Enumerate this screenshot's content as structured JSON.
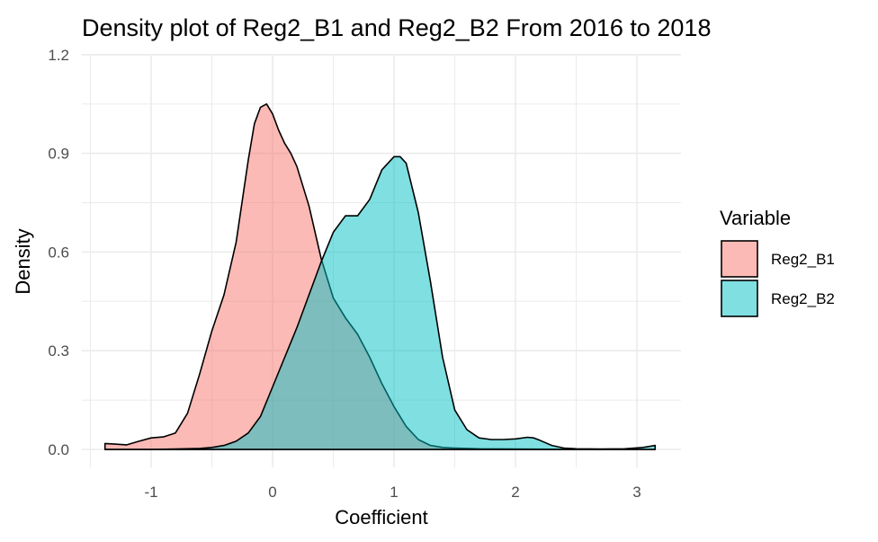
{
  "chart_data": {
    "type": "area",
    "title": "Density plot of Reg2_B1 and Reg2_B2 From 2016 to 2018",
    "xlabel": "Coefficient",
    "ylabel": "Density",
    "xlim": [
      -1.5,
      3.25
    ],
    "ylim": [
      -0.05,
      1.2
    ],
    "x_ticks": [
      -1,
      0,
      1,
      2,
      3
    ],
    "y_ticks": [
      0.0,
      0.3,
      0.6,
      0.9,
      1.2
    ],
    "y_tick_labels": [
      "0.0",
      "0.3",
      "0.6",
      "0.9",
      "1.2"
    ],
    "grid": true,
    "legend": {
      "title": "Variable",
      "position": "right"
    },
    "series": [
      {
        "name": "Reg2_B1",
        "color": "#F8766D",
        "opacity": 0.5,
        "x": [
          -1.38,
          -1.3,
          -1.2,
          -1.1,
          -1.0,
          -0.9,
          -0.8,
          -0.7,
          -0.6,
          -0.5,
          -0.4,
          -0.3,
          -0.2,
          -0.15,
          -0.1,
          -0.05,
          0.0,
          0.05,
          0.1,
          0.15,
          0.2,
          0.3,
          0.4,
          0.5,
          0.6,
          0.7,
          0.8,
          0.9,
          1.0,
          1.1,
          1.2,
          1.3,
          1.4,
          1.5,
          1.7,
          2.0,
          2.5,
          3.0,
          3.15
        ],
        "y": [
          0.018,
          0.016,
          0.014,
          0.025,
          0.035,
          0.038,
          0.05,
          0.11,
          0.23,
          0.36,
          0.47,
          0.63,
          0.88,
          0.99,
          1.04,
          1.05,
          1.02,
          0.97,
          0.93,
          0.9,
          0.86,
          0.74,
          0.58,
          0.46,
          0.4,
          0.35,
          0.28,
          0.2,
          0.13,
          0.07,
          0.03,
          0.012,
          0.006,
          0.004,
          0.002,
          0.001,
          0.0,
          0.0,
          0.0
        ]
      },
      {
        "name": "Reg2_B2",
        "color": "#00BFC4",
        "opacity": 0.5,
        "x": [
          -1.38,
          -1.0,
          -0.8,
          -0.6,
          -0.5,
          -0.4,
          -0.3,
          -0.2,
          -0.1,
          0.0,
          0.1,
          0.2,
          0.3,
          0.4,
          0.5,
          0.6,
          0.7,
          0.8,
          0.9,
          1.0,
          1.05,
          1.1,
          1.2,
          1.3,
          1.4,
          1.5,
          1.6,
          1.7,
          1.8,
          1.9,
          2.0,
          2.1,
          2.15,
          2.2,
          2.3,
          2.4,
          2.5,
          2.7,
          2.9,
          3.05,
          3.15
        ],
        "y": [
          0.0,
          0.0,
          0.001,
          0.003,
          0.006,
          0.012,
          0.025,
          0.05,
          0.1,
          0.19,
          0.28,
          0.37,
          0.47,
          0.57,
          0.66,
          0.71,
          0.71,
          0.76,
          0.85,
          0.89,
          0.89,
          0.87,
          0.72,
          0.51,
          0.28,
          0.12,
          0.06,
          0.035,
          0.03,
          0.03,
          0.032,
          0.037,
          0.035,
          0.028,
          0.012,
          0.004,
          0.002,
          0.001,
          0.002,
          0.006,
          0.012
        ]
      }
    ]
  }
}
